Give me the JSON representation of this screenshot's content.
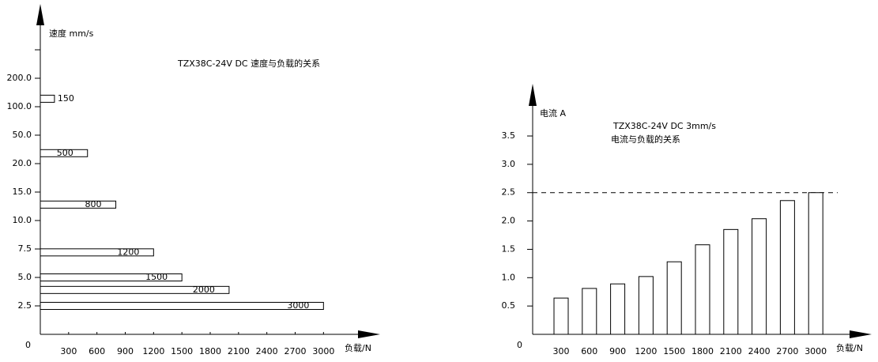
{
  "chart_data": [
    {
      "type": "hbar",
      "title": "TZX38C-24V DC 速度与负载的关系",
      "y_label": "速度 mm/s",
      "x_label": "负载/N",
      "origin_label": "0",
      "values": [
        150,
        500,
        800,
        1200,
        1500,
        2000,
        3000
      ],
      "y": [
        128,
        31,
        12.8,
        7.2,
        5,
        3.9,
        2.5
      ],
      "color": "#ffffff",
      "xlim": [
        0,
        3600
      ],
      "xticks": [
        300,
        600,
        900,
        1200,
        1500,
        1800,
        2100,
        2400,
        2700,
        3000
      ],
      "yticks": [
        2.5,
        {
          "value": 5,
          "label": "5.0"
        },
        7.5,
        {
          "value": 10,
          "label": "10.0"
        },
        {
          "value": 15,
          "label": "15.0"
        },
        {
          "value": 20,
          "label": "20.0"
        },
        {
          "value": 50,
          "label": "50.0"
        },
        {
          "value": 100,
          "label": "100.0"
        },
        {
          "value": 200,
          "label": "200.0"
        }
      ]
    },
    {
      "type": "bar",
      "title": "TZX38C-24V DC  3mm/s",
      "subtitle": "电流与负载的关系",
      "y_label": "电流 A",
      "x_label": "负载/N",
      "origin_label": "0",
      "categories": [
        "300",
        "600",
        "900",
        "1200",
        "1500",
        "1800",
        "2100",
        "2400",
        "2700",
        "3000"
      ],
      "values": [
        0.64,
        0.81,
        0.89,
        1.02,
        1.28,
        1.58,
        1.85,
        2.04,
        2.36,
        2.5
      ],
      "color": "#ffffff",
      "ylim": [
        0,
        4.4
      ],
      "yticks": [
        0.5,
        {
          "value": 1,
          "label": "1.0"
        },
        1.5,
        {
          "value": 2,
          "label": "2.0"
        },
        2.5,
        {
          "value": 3,
          "label": "3.0"
        },
        3.5
      ],
      "reference_line": 2.5
    }
  ]
}
